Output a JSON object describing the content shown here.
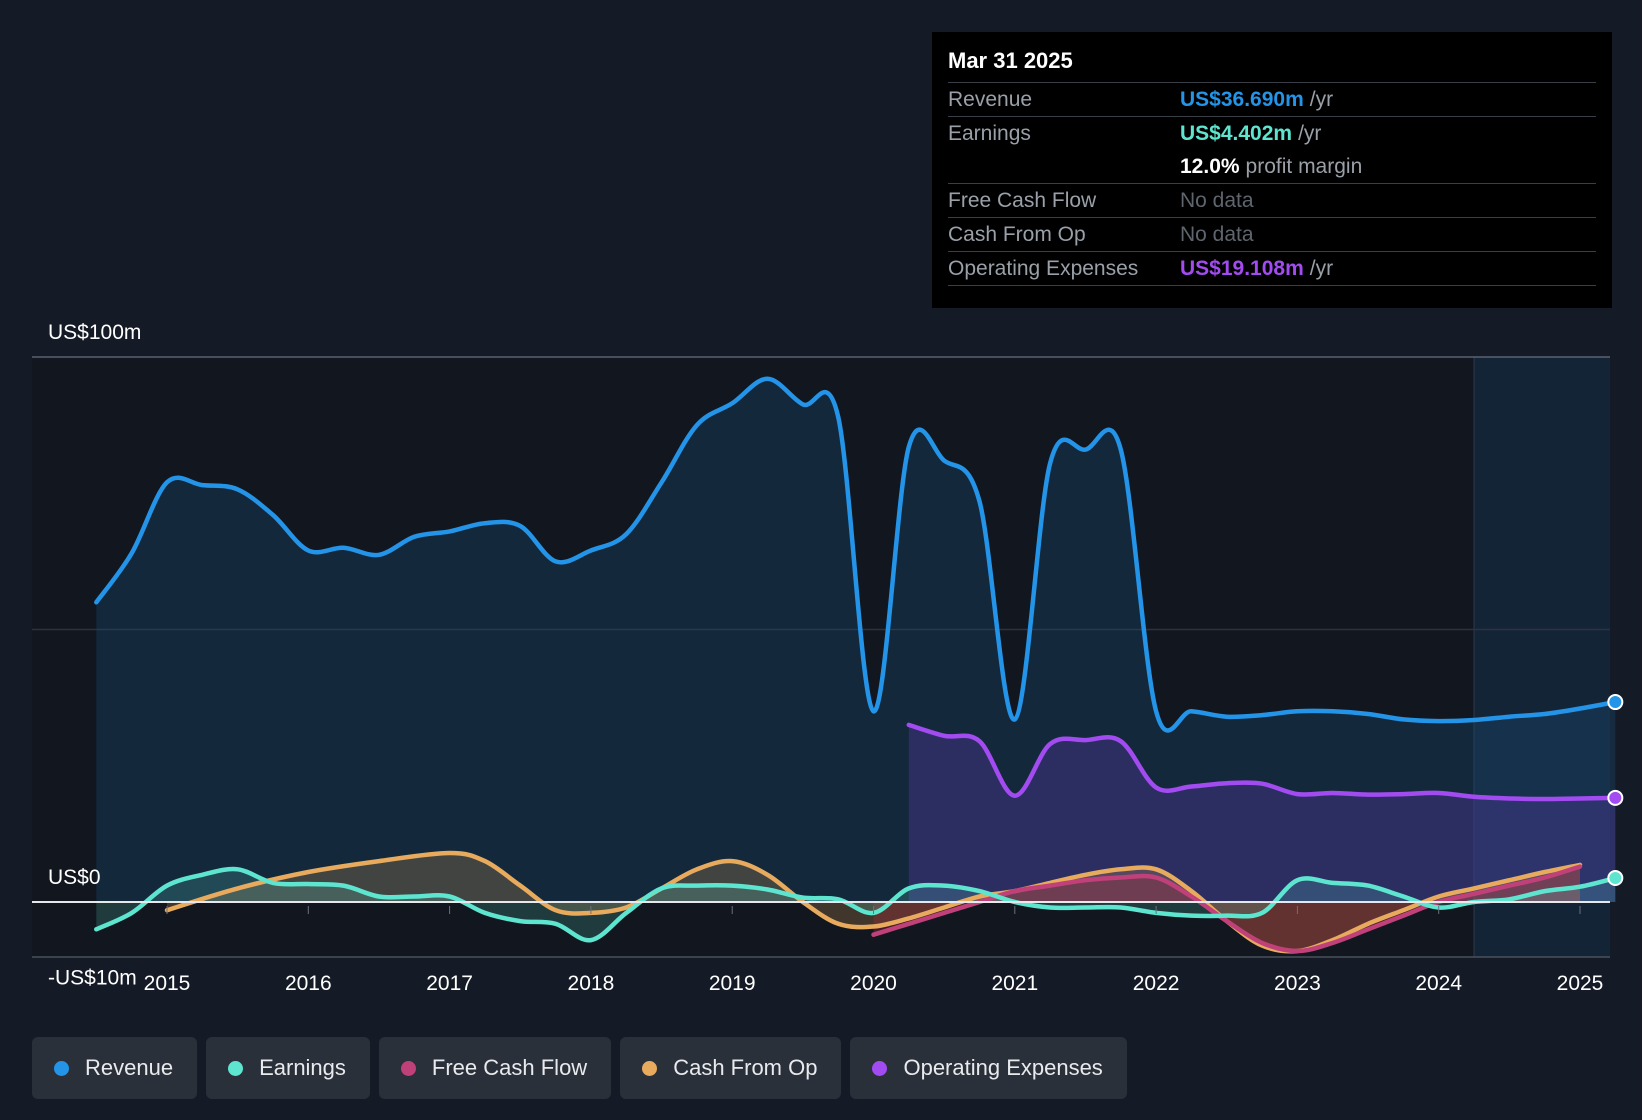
{
  "tooltip": {
    "date": "Mar 31 2025",
    "revenue_label": "Revenue",
    "revenue_value": "US$36.690m",
    "earnings_label": "Earnings",
    "earnings_value": "US$4.402m",
    "margin_value": "12.0%",
    "margin_label": "profit margin",
    "fcf_label": "Free Cash Flow",
    "fcf_value": "No data",
    "cfo_label": "Cash From Op",
    "cfo_value": "No data",
    "opex_label": "Operating Expenses",
    "opex_value": "US$19.108m",
    "per_year": "/yr"
  },
  "legend": {
    "revenue": "Revenue",
    "earnings": "Earnings",
    "fcf": "Free Cash Flow",
    "cfo": "Cash From Op",
    "opex": "Operating Expenses"
  },
  "colors": {
    "revenue": "#2394e8",
    "earnings": "#5ee5cf",
    "fcf": "#c0407a",
    "cfo": "#e8aa5c",
    "opex": "#a24bf0",
    "background": "#151b26"
  },
  "chart_data": {
    "type": "area",
    "title": "",
    "xlabel": "",
    "ylabel": "",
    "ylim": [
      -10,
      100
    ],
    "y_tick_labels": [
      "US$100m",
      "US$0",
      "-US$10m"
    ],
    "x_tick_labels": [
      "2015",
      "2016",
      "2017",
      "2018",
      "2019",
      "2020",
      "2021",
      "2022",
      "2023",
      "2024",
      "2025"
    ],
    "xlim": [
      2014.5,
      2025.25
    ],
    "forecast_shade_start": 2024.25,
    "series": [
      {
        "name": "Revenue",
        "key": "revenue",
        "x": [
          2014.5,
          2014.75,
          2015.0,
          2015.25,
          2015.5,
          2015.75,
          2016.0,
          2016.25,
          2016.5,
          2016.75,
          2017.0,
          2017.25,
          2017.5,
          2017.75,
          2018.0,
          2018.25,
          2018.5,
          2018.75,
          2019.0,
          2019.25,
          2019.5,
          2019.75,
          2020.0,
          2020.25,
          2020.5,
          2020.75,
          2021.0,
          2021.25,
          2021.5,
          2021.75,
          2022.0,
          2022.25,
          2022.5,
          2022.75,
          2023.0,
          2023.25,
          2023.5,
          2023.75,
          2024.0,
          2024.25,
          2024.5,
          2024.75,
          2025.0,
          2025.25
        ],
        "values": [
          55,
          64,
          77,
          76.5,
          75.7,
          71,
          64.5,
          65,
          63.7,
          67,
          68,
          69.5,
          69,
          62.5,
          64.5,
          67.5,
          77,
          87.5,
          91.5,
          96,
          91.3,
          89,
          35,
          83.5,
          81,
          73.5,
          33.5,
          80.5,
          83,
          83,
          35,
          35,
          34,
          34.3,
          35,
          35,
          34.5,
          33.5,
          33.2,
          33.4,
          34,
          34.5,
          35.5,
          36.69
        ]
      },
      {
        "name": "Earnings",
        "key": "earnings",
        "x": [
          2014.5,
          2014.75,
          2015.0,
          2015.25,
          2015.5,
          2015.75,
          2016.0,
          2016.25,
          2016.5,
          2016.75,
          2017.0,
          2017.25,
          2017.5,
          2017.75,
          2018.0,
          2018.25,
          2018.5,
          2018.75,
          2019.0,
          2019.25,
          2019.5,
          2019.75,
          2020.0,
          2020.25,
          2020.5,
          2020.75,
          2021.0,
          2021.25,
          2021.5,
          2021.75,
          2022.0,
          2022.25,
          2022.5,
          2022.75,
          2023.0,
          2023.25,
          2023.5,
          2023.75,
          2024.0,
          2024.25,
          2024.5,
          2024.75,
          2025.0,
          2025.25
        ],
        "values": [
          -5,
          -2,
          3,
          5,
          6,
          3.5,
          3.3,
          3,
          1,
          1,
          1,
          -2,
          -3.5,
          -4,
          -7,
          -2,
          2.5,
          3,
          3,
          2.3,
          0.8,
          0.5,
          -2,
          2.5,
          3,
          2,
          0,
          -1,
          -1,
          -1,
          -2,
          -2.5,
          -2.5,
          -2,
          4,
          3.5,
          3,
          1,
          -1,
          0,
          0.5,
          2,
          2.8,
          4.402
        ]
      },
      {
        "name": "Free Cash Flow",
        "key": "fcf",
        "x": [
          2020.0,
          2020.25,
          2020.5,
          2020.75,
          2021.0,
          2021.25,
          2021.5,
          2021.75,
          2022.0,
          2022.25,
          2022.5,
          2022.75,
          2023.0,
          2023.25,
          2023.5,
          2023.75,
          2024.0,
          2024.25,
          2024.5,
          2024.75,
          2025.0
        ],
        "values": [
          -6,
          -4,
          -2,
          0,
          2,
          3,
          4,
          4.5,
          4.5,
          1,
          -3.5,
          -7.5,
          -9,
          -7.5,
          -5,
          -2.5,
          0,
          1.5,
          3,
          4.5,
          6.5
        ]
      },
      {
        "name": "Cash From Op",
        "key": "cfo",
        "x": [
          2015.0,
          2015.5,
          2016.0,
          2016.5,
          2017.0,
          2017.25,
          2017.5,
          2017.75,
          2018.0,
          2018.25,
          2018.5,
          2018.75,
          2019.0,
          2019.25,
          2019.5,
          2019.75,
          2020.0,
          2020.25,
          2020.5,
          2020.75,
          2021.0,
          2021.25,
          2021.5,
          2021.75,
          2022.0,
          2022.25,
          2022.5,
          2022.75,
          2023.0,
          2023.25,
          2023.5,
          2023.75,
          2024.0,
          2024.25,
          2024.5,
          2024.75,
          2025.0
        ],
        "values": [
          -1.5,
          2.5,
          5.5,
          7.5,
          9,
          7.5,
          3,
          -1.5,
          -2,
          -1,
          2.5,
          6,
          7.5,
          5,
          0,
          -4,
          -4.5,
          -3,
          -1,
          1,
          2,
          3.5,
          5,
          6,
          6,
          2,
          -3.5,
          -8,
          -9,
          -7,
          -4,
          -1.5,
          1,
          2.5,
          4,
          5.5,
          6.8
        ]
      },
      {
        "name": "Operating Expenses",
        "key": "opex",
        "x": [
          2020.25,
          2020.5,
          2020.75,
          2021.0,
          2021.25,
          2021.5,
          2021.75,
          2022.0,
          2022.25,
          2022.5,
          2022.75,
          2023.0,
          2023.25,
          2023.5,
          2023.75,
          2024.0,
          2024.25,
          2024.5,
          2024.75,
          2025.0,
          2025.25
        ],
        "values": [
          32.5,
          30.5,
          29.5,
          19.5,
          29,
          29.7,
          29.5,
          21,
          21.2,
          21.8,
          21.7,
          19.8,
          20,
          19.7,
          19.8,
          20,
          19.3,
          19,
          18.9,
          19,
          19.108
        ]
      }
    ]
  }
}
